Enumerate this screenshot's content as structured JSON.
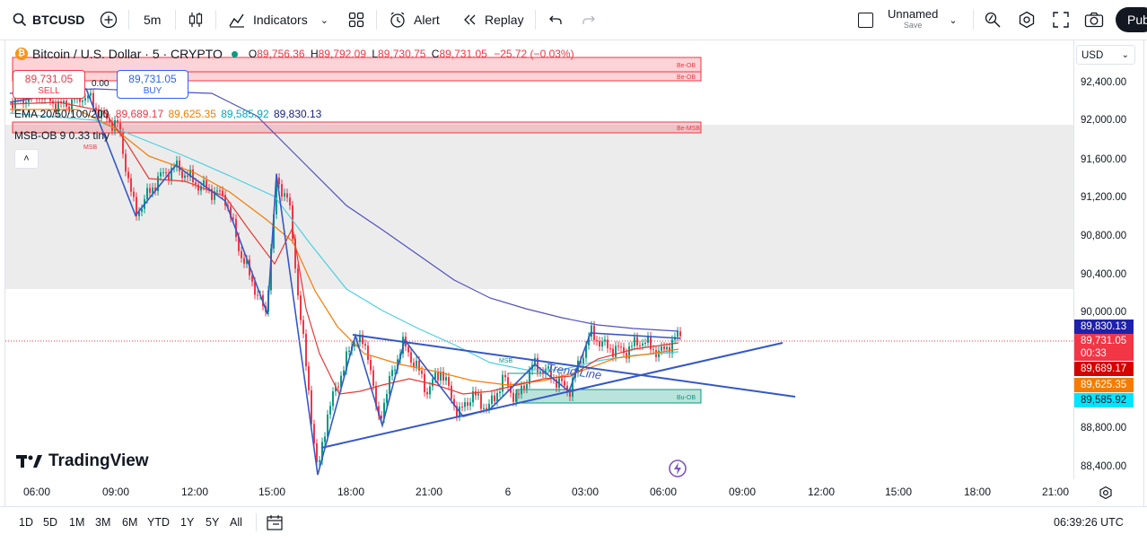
{
  "toolbar": {
    "symbol": "BTCUSD",
    "interval": "5m",
    "indicators_label": "Indicators",
    "alert_label": "Alert",
    "replay_label": "Replay",
    "layout_name": "Unnamed",
    "layout_status": "Save",
    "publish_label": "Pub"
  },
  "legend": {
    "title": "Bitcoin / U.S. Dollar · 5 · CRYPTO",
    "o_label": "O",
    "o_value": "89,756.36",
    "h_label": "H",
    "h_value": "89,792.09",
    "l_label": "L",
    "l_value": "89,730.75",
    "c_label": "C",
    "c_value": "89,731.05",
    "change": "−25.72 (−0.03%)",
    "sell_price": "89,731.05",
    "sell_label": "SELL",
    "spread": "0.00",
    "buy_price": "89,731.05",
    "buy_label": "BUY",
    "ema_label": "EMA 20/50/100/200",
    "ema20": "89,689.17",
    "ema50": "89,625.35",
    "ema100": "89,585.92",
    "ema200": "89,830.13",
    "msb_label": "MSB-OB 9 0.33 tiny"
  },
  "currency": "USD",
  "price_axis": [
    "92,400.00",
    "92,000.00",
    "91,600.00",
    "91,200.00",
    "90,800.00",
    "90,400.00",
    "90,000.00",
    "88,800.00",
    "88,400.00"
  ],
  "price_labels": {
    "ema200": "89,830.13",
    "last": "89,731.05",
    "countdown": "00:33",
    "ema20": "89,689.17",
    "ema50": "89,625.35",
    "ema100": "89,585.92"
  },
  "time_axis": [
    "06:00",
    "09:00",
    "12:00",
    "15:00",
    "18:00",
    "21:00",
    "6",
    "03:00",
    "06:00",
    "09:00",
    "12:00",
    "15:00",
    "18:00",
    "21:00"
  ],
  "annotations": {
    "trend_line": "Trend Line",
    "be_ob": "Be-OB",
    "be_ob2": "Be-OB",
    "be_msb": "Be-MSB",
    "bu_ob": "Bu-OB",
    "msb": "MSB",
    "msb2": "MSB"
  },
  "ranges": [
    "1D",
    "5D",
    "1M",
    "3M",
    "6M",
    "YTD",
    "1Y",
    "5Y",
    "All"
  ],
  "clock": "06:39:26 UTC",
  "brand": "TradingView",
  "colors": {
    "ema20": "#f23645",
    "ema50": "#f57c00",
    "ema100": "#00bcd4",
    "ema200": "#3f3fbf",
    "up": "#089981",
    "down": "#f23645",
    "trend": "#3558c8"
  }
}
